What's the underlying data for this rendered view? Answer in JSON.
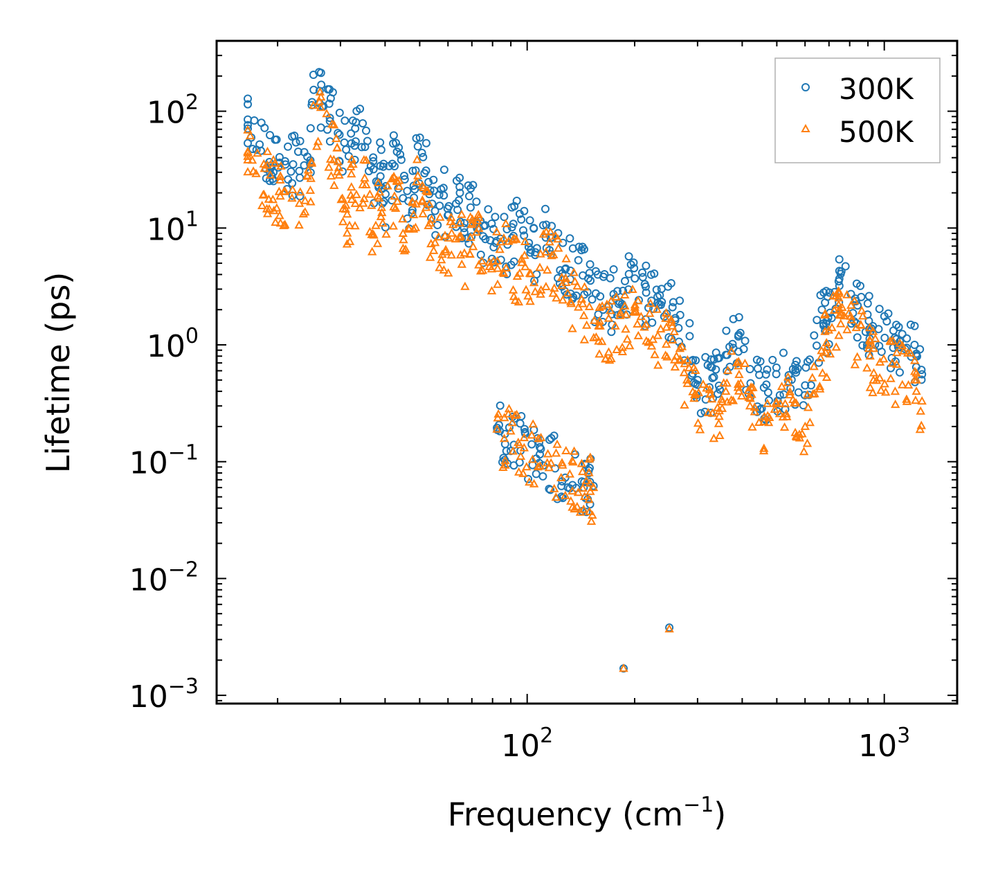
{
  "chart_data": {
    "type": "scatter",
    "title": "",
    "xlabel": "Frequency (cm",
    "xlabel_sup": "−1",
    "xlabel_suffix": ")",
    "ylabel": "Lifetime (ps)",
    "xscale": "log",
    "yscale": "log",
    "xlim": [
      13.5,
      1600
    ],
    "ylim": [
      0.00085,
      400
    ],
    "x_ticks": [
      {
        "value": 100,
        "base": "10",
        "exp": "2"
      },
      {
        "value": 1000,
        "base": "10",
        "exp": "3"
      }
    ],
    "y_ticks": [
      {
        "value": 100,
        "base": "10",
        "exp": "2"
      },
      {
        "value": 10,
        "base": "10",
        "exp": "1"
      },
      {
        "value": 1,
        "base": "10",
        "exp": "0"
      },
      {
        "value": 0.1,
        "base": "10",
        "exp": "−1"
      },
      {
        "value": 0.01,
        "base": "10",
        "exp": "−2"
      },
      {
        "value": 0.001,
        "base": "10",
        "exp": "−3"
      }
    ],
    "legend": {
      "position": "top-right",
      "entries": [
        "300K",
        "500K"
      ]
    },
    "colors": {
      "300K": "#1f77b4",
      "500K": "#ff7f0e"
    },
    "series": [
      {
        "name": "300K",
        "marker": "circle",
        "color": "#1f77b4",
        "points": [
          [
            16.5,
            76
          ],
          [
            16.5,
            71
          ],
          [
            20.2,
            36
          ],
          [
            24.7,
            38
          ],
          [
            25.2,
            205
          ],
          [
            29.5,
            65
          ],
          [
            32.2,
            53
          ],
          [
            35.4,
            68
          ],
          [
            37.8,
            25
          ],
          [
            38.8,
            34
          ],
          [
            39.4,
            22
          ],
          [
            40.1,
            19.5
          ],
          [
            43.2,
            45
          ],
          [
            44.9,
            18
          ],
          [
            46.5,
            17
          ],
          [
            48.1,
            23
          ],
          [
            49.4,
            50
          ],
          [
            52.1,
            31
          ],
          [
            53.5,
            21
          ],
          [
            55.2,
            14
          ],
          [
            58.4,
            19
          ],
          [
            60.2,
            13
          ],
          [
            64.8,
            20
          ],
          [
            66.7,
            11
          ],
          [
            69.4,
            15
          ],
          [
            72.1,
            16.8
          ],
          [
            75.3,
            8.5
          ],
          [
            80.5,
            9.8
          ],
          [
            84.2,
            8.1
          ],
          [
            88.1,
            7.2
          ],
          [
            95.3,
            13.2
          ],
          [
            102.4,
            6.5
          ],
          [
            117.1,
            10.4
          ],
          [
            128.2,
            4.5
          ],
          [
            139.1,
            5.3
          ],
          [
            148.3,
            3.7
          ],
          [
            160.1,
            2.6
          ],
          [
            176.5,
            2.5
          ],
          [
            185.4,
            2.9
          ],
          [
            200.2,
            3.7
          ],
          [
            215.3,
            2.8
          ],
          [
            232.1,
            2.3
          ],
          [
            255.3,
            2.1
          ],
          [
            268.2,
            1.8
          ],
          [
            300.1,
            0.5
          ],
          [
            330.2,
            0.52
          ],
          [
            360.1,
            0.82
          ],
          [
            390.2,
            1.18
          ],
          [
            420.5,
            0.62
          ],
          [
            460.2,
            0.43
          ],
          [
            555.2,
            0.62
          ],
          [
            600.3,
            0.45
          ],
          [
            682.4,
            2.3
          ],
          [
            690.1,
            1.6
          ],
          [
            745.3,
            3.5
          ],
          [
            748.5,
            3.2
          ],
          [
            905.2,
            1.6
          ],
          [
            912.8,
            1.3
          ],
          [
            1215.5,
            1.0
          ],
          [
            1230.1,
            0.84
          ],
          [
            1275.3,
            0.56
          ],
          [
            82.3,
            0.195
          ],
          [
            153.4,
            0.062
          ],
          [
            186.2,
            0.0017
          ],
          [
            250.1,
            0.0038
          ]
        ]
      },
      {
        "name": "500K",
        "marker": "triangle",
        "color": "#ff7f0e",
        "points": [
          [
            16.5,
            44
          ],
          [
            16.5,
            41
          ],
          [
            20.2,
            20.5
          ],
          [
            24.7,
            21
          ],
          [
            25.2,
            112
          ],
          [
            29.5,
            37
          ],
          [
            31.0,
            14.5
          ],
          [
            31.8,
            10.5
          ],
          [
            32.2,
            29
          ],
          [
            33.0,
            16.2
          ],
          [
            35.4,
            38
          ],
          [
            37.2,
            8.7
          ],
          [
            38.5,
            18
          ],
          [
            39.4,
            11
          ],
          [
            43.2,
            25
          ],
          [
            44.9,
            9
          ],
          [
            46.5,
            10
          ],
          [
            48.1,
            13
          ],
          [
            49.4,
            28
          ],
          [
            52.1,
            15
          ],
          [
            53.5,
            11
          ],
          [
            55.2,
            7.5
          ],
          [
            60.2,
            8.2
          ],
          [
            64.8,
            11
          ],
          [
            66.7,
            6.1
          ],
          [
            69.4,
            8.3
          ],
          [
            72.1,
            9.2
          ],
          [
            80.5,
            5.2
          ],
          [
            84.2,
            7.6
          ],
          [
            95.3,
            4.1
          ],
          [
            117.1,
            5.8
          ],
          [
            128.2,
            3.7
          ],
          [
            139.1,
            2.1
          ],
          [
            160.1,
            1.45
          ],
          [
            176.5,
            1.45
          ],
          [
            200.2,
            2.1
          ],
          [
            215.3,
            1.5
          ],
          [
            232.1,
            1.2
          ],
          [
            255.3,
            1.1
          ],
          [
            280.2,
            0.5
          ],
          [
            330.2,
            0.26
          ],
          [
            360.1,
            0.4
          ],
          [
            390.2,
            0.66
          ],
          [
            420.5,
            0.3
          ],
          [
            460.2,
            0.22
          ],
          [
            555.2,
            0.34
          ],
          [
            600.3,
            0.2
          ],
          [
            682.4,
            1.3
          ],
          [
            690.1,
            0.95
          ],
          [
            745.3,
            2.2
          ],
          [
            748.5,
            2.0
          ],
          [
            905.2,
            0.93
          ],
          [
            912.8,
            0.8
          ],
          [
            1215.5,
            0.5
          ],
          [
            1230.1,
            0.4
          ],
          [
            1275.3,
            0.33
          ],
          [
            82.3,
            0.19
          ],
          [
            153.4,
            0.06
          ],
          [
            186.2,
            0.0017
          ],
          [
            250.1,
            0.0037
          ]
        ]
      }
    ]
  }
}
